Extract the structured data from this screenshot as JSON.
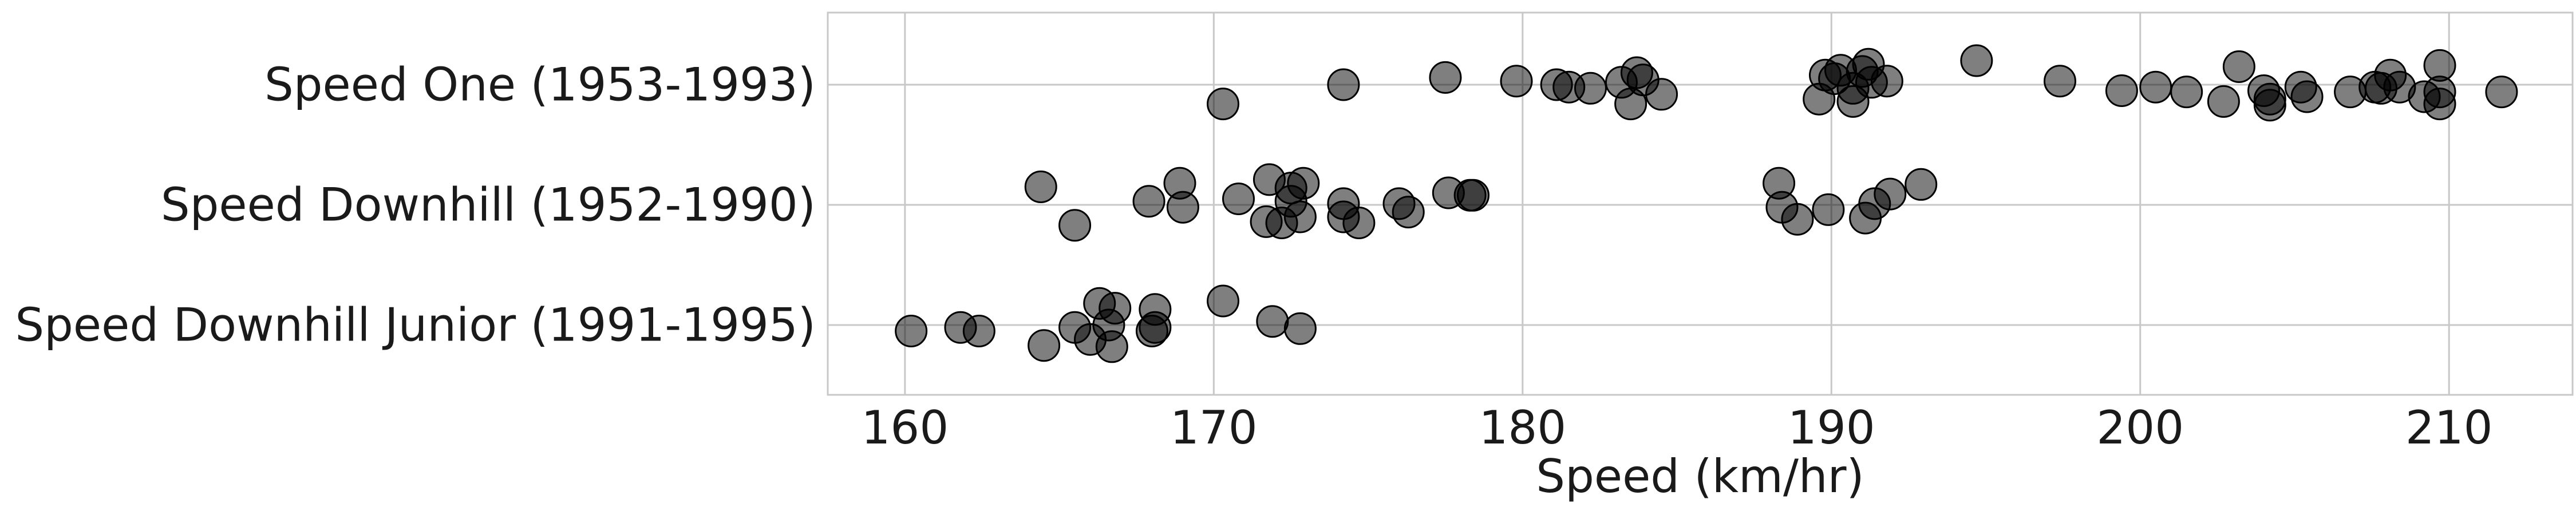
{
  "chart_data": {
    "type": "scatter",
    "title": "",
    "xlabel": "Speed (km/hr)",
    "ylabel": "",
    "xlim": [
      157.5,
      214.0
    ],
    "xticks": [
      160,
      170,
      180,
      190,
      200,
      210
    ],
    "grid": true,
    "marker_color": "#000000",
    "categories": [
      "Speed One (1953-1993)",
      "Speed Downhill (1952-1990)",
      "Speed Downhill Junior (1991-1995)"
    ],
    "series": [
      {
        "category": "Speed One (1953-1993)",
        "points": [
          {
            "x": 170.3,
            "j": -0.16
          },
          {
            "x": 174.2,
            "j": 0.0
          },
          {
            "x": 177.5,
            "j": 0.06
          },
          {
            "x": 179.8,
            "j": 0.03
          },
          {
            "x": 181.1,
            "j": 0.0
          },
          {
            "x": 181.5,
            "j": -0.02
          },
          {
            "x": 182.2,
            "j": -0.03
          },
          {
            "x": 183.2,
            "j": 0.02
          },
          {
            "x": 183.5,
            "j": -0.16
          },
          {
            "x": 183.7,
            "j": 0.1
          },
          {
            "x": 183.9,
            "j": 0.04
          },
          {
            "x": 184.5,
            "j": -0.08
          },
          {
            "x": 189.6,
            "j": -0.12
          },
          {
            "x": 189.8,
            "j": 0.08
          },
          {
            "x": 190.1,
            "j": 0.05
          },
          {
            "x": 190.3,
            "j": 0.12
          },
          {
            "x": 190.7,
            "j": -0.14
          },
          {
            "x": 190.7,
            "j": -0.03
          },
          {
            "x": 191.0,
            "j": 0.11
          },
          {
            "x": 191.2,
            "j": 0.17
          },
          {
            "x": 191.3,
            "j": 0.02
          },
          {
            "x": 191.8,
            "j": 0.03
          },
          {
            "x": 194.7,
            "j": 0.2
          },
          {
            "x": 197.4,
            "j": 0.03
          },
          {
            "x": 199.4,
            "j": -0.05
          },
          {
            "x": 200.5,
            "j": -0.02
          },
          {
            "x": 201.5,
            "j": -0.06
          },
          {
            "x": 202.7,
            "j": -0.14
          },
          {
            "x": 203.2,
            "j": 0.15
          },
          {
            "x": 204.0,
            "j": -0.05
          },
          {
            "x": 204.2,
            "j": -0.17
          },
          {
            "x": 204.2,
            "j": -0.12
          },
          {
            "x": 205.2,
            "j": -0.02
          },
          {
            "x": 205.4,
            "j": -0.1
          },
          {
            "x": 206.8,
            "j": -0.06
          },
          {
            "x": 207.6,
            "j": -0.02
          },
          {
            "x": 207.8,
            "j": -0.03
          },
          {
            "x": 208.1,
            "j": 0.08
          },
          {
            "x": 208.4,
            "j": -0.02
          },
          {
            "x": 209.2,
            "j": -0.1
          },
          {
            "x": 209.7,
            "j": 0.16
          },
          {
            "x": 209.7,
            "j": -0.06
          },
          {
            "x": 209.7,
            "j": -0.16
          },
          {
            "x": 211.7,
            "j": -0.06
          }
        ]
      },
      {
        "category": "Speed Downhill (1952-1990)",
        "points": [
          {
            "x": 164.4,
            "j": 0.15
          },
          {
            "x": 165.5,
            "j": -0.17
          },
          {
            "x": 167.9,
            "j": 0.03
          },
          {
            "x": 168.9,
            "j": 0.18
          },
          {
            "x": 169.0,
            "j": -0.02
          },
          {
            "x": 170.8,
            "j": 0.05
          },
          {
            "x": 171.7,
            "j": -0.14
          },
          {
            "x": 171.8,
            "j": 0.21
          },
          {
            "x": 172.2,
            "j": -0.15
          },
          {
            "x": 172.5,
            "j": 0.03
          },
          {
            "x": 172.5,
            "j": 0.14
          },
          {
            "x": 172.8,
            "j": -0.1
          },
          {
            "x": 172.9,
            "j": 0.18
          },
          {
            "x": 174.2,
            "j": 0.01
          },
          {
            "x": 174.2,
            "j": -0.1
          },
          {
            "x": 174.7,
            "j": -0.15
          },
          {
            "x": 176.0,
            "j": 0.01
          },
          {
            "x": 176.3,
            "j": -0.06
          },
          {
            "x": 177.6,
            "j": 0.1
          },
          {
            "x": 178.3,
            "j": 0.08
          },
          {
            "x": 178.4,
            "j": 0.08
          },
          {
            "x": 188.3,
            "j": 0.18
          },
          {
            "x": 188.4,
            "j": -0.02
          },
          {
            "x": 188.9,
            "j": -0.12
          },
          {
            "x": 189.9,
            "j": -0.04
          },
          {
            "x": 191.1,
            "j": -0.11
          },
          {
            "x": 191.4,
            "j": 0.01
          },
          {
            "x": 191.9,
            "j": 0.09
          },
          {
            "x": 192.9,
            "j": 0.17
          }
        ]
      },
      {
        "category": "Speed Downhill Junior (1991-1995)",
        "points": [
          {
            "x": 160.2,
            "j": -0.05
          },
          {
            "x": 161.8,
            "j": -0.02
          },
          {
            "x": 162.4,
            "j": -0.05
          },
          {
            "x": 164.5,
            "j": -0.17
          },
          {
            "x": 165.5,
            "j": -0.02
          },
          {
            "x": 166.0,
            "j": -0.12
          },
          {
            "x": 166.3,
            "j": 0.18
          },
          {
            "x": 166.6,
            "j": 0.0
          },
          {
            "x": 166.7,
            "j": -0.18
          },
          {
            "x": 166.8,
            "j": 0.14
          },
          {
            "x": 168.0,
            "j": -0.05
          },
          {
            "x": 168.1,
            "j": 0.13
          },
          {
            "x": 168.1,
            "j": -0.02
          },
          {
            "x": 170.3,
            "j": 0.2
          },
          {
            "x": 171.9,
            "j": 0.03
          },
          {
            "x": 172.8,
            "j": -0.03
          }
        ]
      }
    ]
  }
}
